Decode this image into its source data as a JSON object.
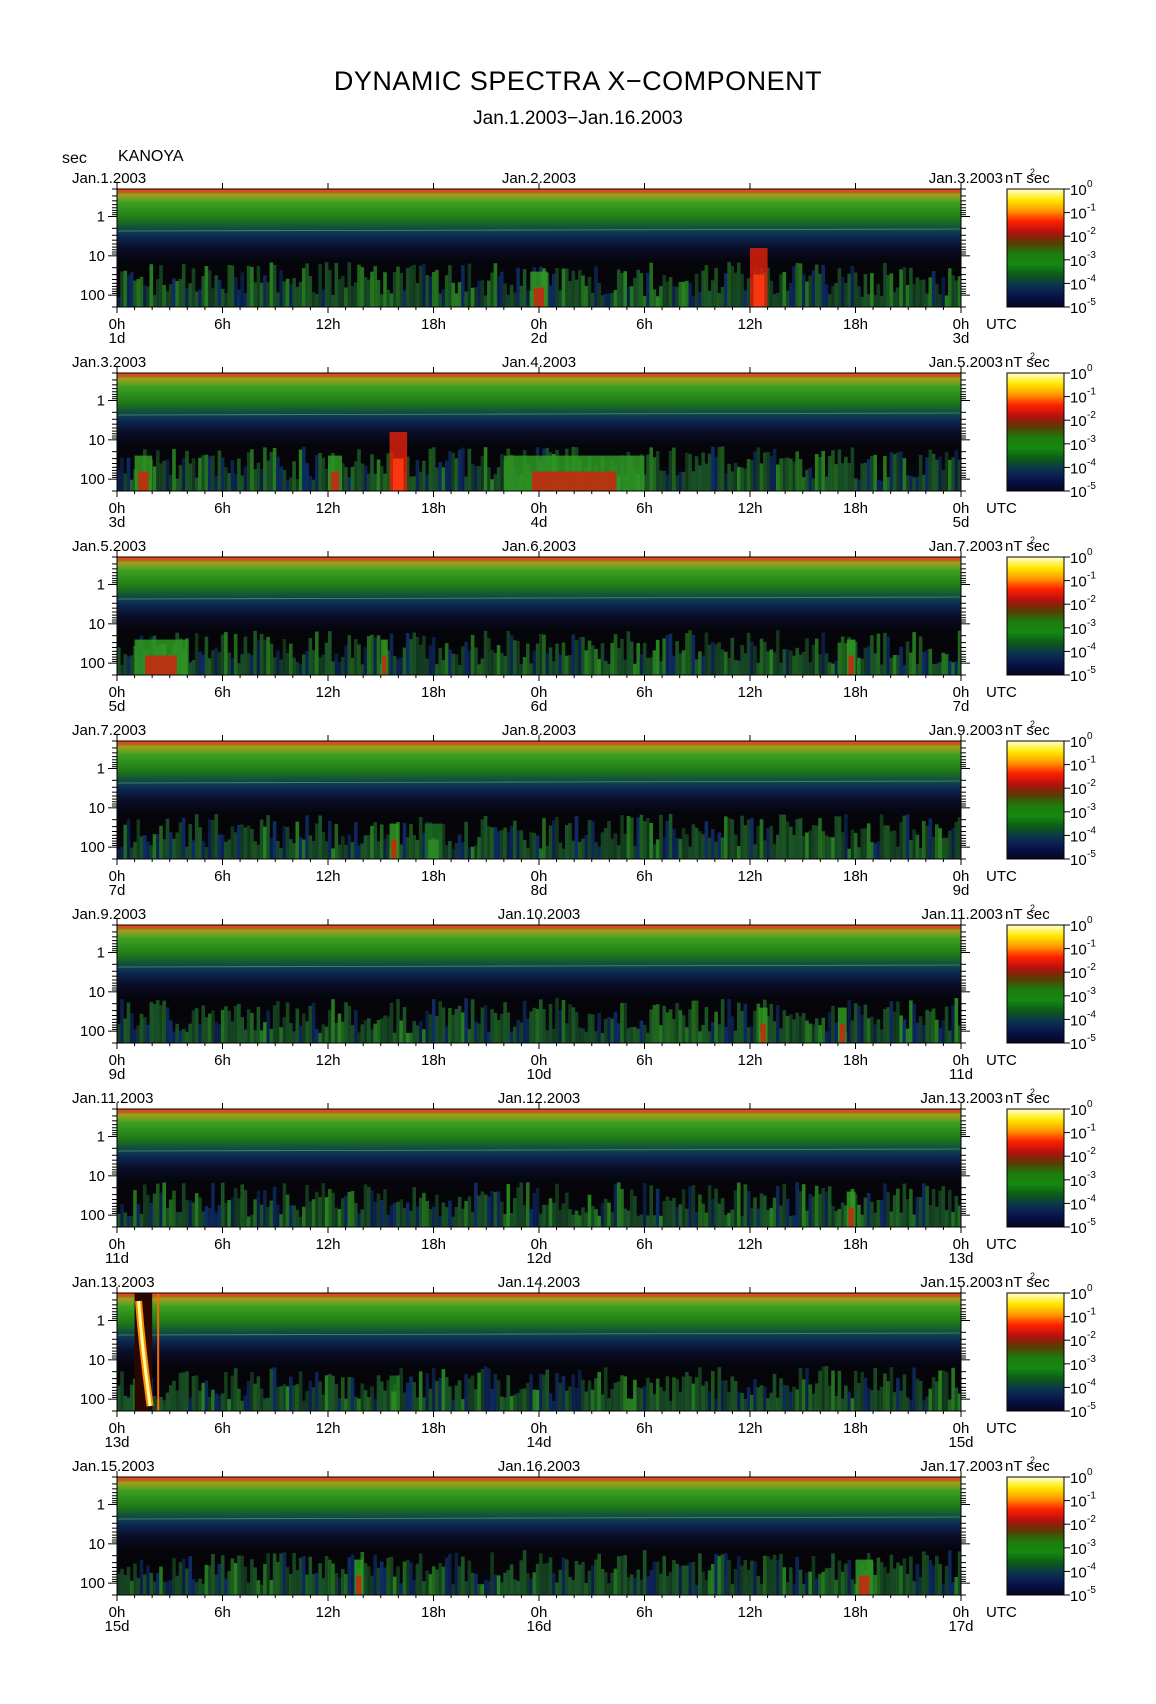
{
  "figure": {
    "title": "DYNAMIC SPECTRA X−COMPONENT",
    "subtitle": "Jan.1.2003−Jan.16.2003",
    "y_unit": "sec",
    "station": "KANOYA"
  },
  "colorbar": {
    "unit": "nT²sec",
    "tick_bases": [
      "10",
      "10",
      "10",
      "10",
      "10",
      "10"
    ],
    "tick_exponents": [
      "0",
      "-1",
      "-2",
      "-3",
      "-4",
      "-5"
    ],
    "stops": [
      "#ffffd0",
      "#ffe800",
      "#ff9a00",
      "#ff2000",
      "#b81010",
      "#5a3a00",
      "#1f7a10",
      "#148a10",
      "#0c5a18",
      "#0a3350",
      "#08124a",
      "#05051e"
    ]
  },
  "axis": {
    "y_tick_labels": [
      "1",
      "10",
      "100"
    ],
    "x_tick_labels": [
      "0h",
      "6h",
      "12h",
      "18h",
      "0h",
      "6h",
      "12h",
      "18h",
      "0h"
    ],
    "x_unit": "UTC"
  },
  "chart_data": [
    {
      "type": "heatmap",
      "panel": 1,
      "date_left": "Jan.1.2003",
      "date_mid": "Jan.2.2003",
      "date_right": "Jan.3.2003",
      "day_start": "1d",
      "day_mid": "2d",
      "day_end": "3d",
      "ylabel": "sec",
      "xlabel": "UTC",
      "y_scale": "log",
      "ylim": [
        0.2,
        200
      ],
      "xlim": [
        "0h",
        "0h"
      ],
      "events": [
        {
          "start_h": 36.0,
          "end_h": 37.0,
          "level": "high"
        },
        {
          "start_h": 23.5,
          "end_h": 24.5,
          "level": "mid"
        }
      ]
    },
    {
      "type": "heatmap",
      "panel": 2,
      "date_left": "Jan.3.2003",
      "date_mid": "Jan.4.2003",
      "date_right": "Jan.5.2003",
      "day_start": "3d",
      "day_mid": "4d",
      "day_end": "5d",
      "ylabel": "sec",
      "xlabel": "UTC",
      "y_scale": "log",
      "ylim": [
        0.2,
        200
      ],
      "xlim": [
        "0h",
        "0h"
      ],
      "events": [
        {
          "start_h": 15.5,
          "end_h": 16.5,
          "level": "high"
        },
        {
          "start_h": 12.0,
          "end_h": 12.8,
          "level": "mid"
        },
        {
          "start_h": 22.0,
          "end_h": 30.0,
          "level": "mid"
        },
        {
          "start_h": 1.0,
          "end_h": 2.0,
          "level": "mid"
        }
      ]
    },
    {
      "type": "heatmap",
      "panel": 3,
      "date_left": "Jan.5.2003",
      "date_mid": "Jan.6.2003",
      "date_right": "Jan.7.2003",
      "day_start": "5d",
      "day_mid": "6d",
      "day_end": "7d",
      "ylabel": "sec",
      "xlabel": "UTC",
      "y_scale": "log",
      "ylim": [
        0.2,
        200
      ],
      "xlim": [
        "0h",
        "0h"
      ],
      "events": [
        {
          "start_h": 15.0,
          "end_h": 15.4,
          "level": "mid"
        },
        {
          "start_h": 1.0,
          "end_h": 4.0,
          "level": "mid"
        },
        {
          "start_h": 41.5,
          "end_h": 42.0,
          "level": "mid"
        }
      ]
    },
    {
      "type": "heatmap",
      "panel": 4,
      "date_left": "Jan.7.2003",
      "date_mid": "Jan.8.2003",
      "date_right": "Jan.9.2003",
      "day_start": "7d",
      "day_mid": "8d",
      "day_end": "9d",
      "ylabel": "sec",
      "xlabel": "UTC",
      "y_scale": "log",
      "ylim": [
        0.2,
        200
      ],
      "xlim": [
        "0h",
        "0h"
      ],
      "events": [
        {
          "start_h": 15.5,
          "end_h": 16.0,
          "level": "mid"
        },
        {
          "start_h": 17.5,
          "end_h": 18.5,
          "level": "low"
        }
      ]
    },
    {
      "type": "heatmap",
      "panel": 5,
      "date_left": "Jan.9.2003",
      "date_mid": "Jan.10.2003",
      "date_right": "Jan.11.2003",
      "day_start": "9d",
      "day_mid": "10d",
      "day_end": "11d",
      "ylabel": "sec",
      "xlabel": "UTC",
      "y_scale": "log",
      "ylim": [
        0.2,
        200
      ],
      "xlim": [
        "0h",
        "0h"
      ],
      "events": [
        {
          "start_h": 36.5,
          "end_h": 37.0,
          "level": "mid"
        },
        {
          "start_h": 41.0,
          "end_h": 41.5,
          "level": "mid"
        }
      ]
    },
    {
      "type": "heatmap",
      "panel": 6,
      "date_left": "Jan.11.2003",
      "date_mid": "Jan.12.2003",
      "date_right": "Jan.13.2003",
      "day_start": "11d",
      "day_mid": "12d",
      "day_end": "13d",
      "ylabel": "sec",
      "xlabel": "UTC",
      "y_scale": "log",
      "ylim": [
        0.2,
        200
      ],
      "xlim": [
        "0h",
        "0h"
      ],
      "events": [
        {
          "start_h": 41.5,
          "end_h": 42.0,
          "level": "mid"
        }
      ]
    },
    {
      "type": "heatmap",
      "panel": 7,
      "date_left": "Jan.13.2003",
      "date_mid": "Jan.14.2003",
      "date_right": "Jan.15.2003",
      "day_start": "13d",
      "day_mid": "14d",
      "day_end": "15d",
      "ylabel": "sec",
      "xlabel": "UTC",
      "y_scale": "log",
      "ylim": [
        0.2,
        200
      ],
      "xlim": [
        "0h",
        "0h"
      ],
      "events": [
        {
          "start_h": 1.0,
          "end_h": 2.0,
          "level": "peak"
        },
        {
          "start_h": 15.5,
          "end_h": 16.0,
          "level": "low"
        }
      ]
    },
    {
      "type": "heatmap",
      "panel": 8,
      "date_left": "Jan.15.2003",
      "date_mid": "Jan.16.2003",
      "date_right": "Jan.17.2003",
      "day_start": "15d",
      "day_mid": "16d",
      "day_end": "17d",
      "ylabel": "sec",
      "xlabel": "UTC",
      "y_scale": "log",
      "ylim": [
        0.2,
        200
      ],
      "xlim": [
        "0h",
        "0h"
      ],
      "events": [
        {
          "start_h": 13.5,
          "end_h": 14.0,
          "level": "mid"
        },
        {
          "start_h": 42.0,
          "end_h": 43.0,
          "level": "mid"
        }
      ]
    }
  ]
}
